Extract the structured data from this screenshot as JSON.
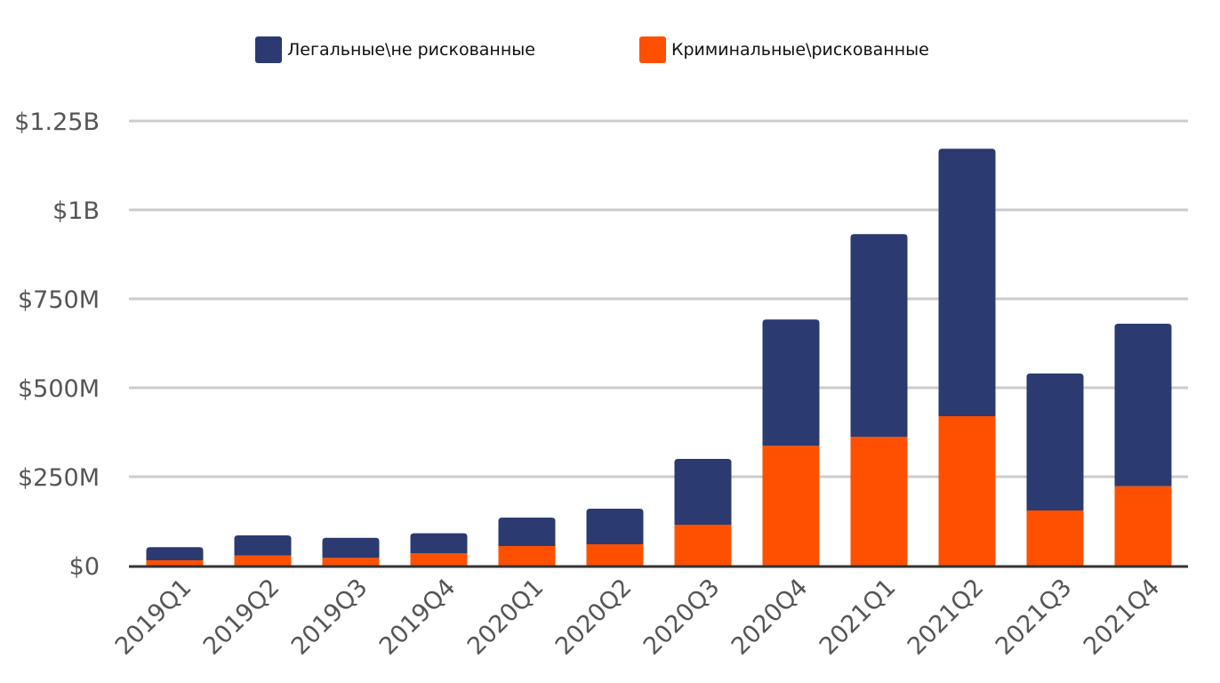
{
  "chart_data": {
    "type": "bar",
    "stacked": true,
    "categories": [
      "2019Q1",
      "2019Q2",
      "2019Q3",
      "2019Q4",
      "2020Q1",
      "2020Q2",
      "2020Q3",
      "2020Q4",
      "2021Q1",
      "2021Q2",
      "2021Q3",
      "2021Q4"
    ],
    "series": [
      {
        "name": "Криминальные\\рискованные",
        "color": "#fe5000",
        "values": [
          15,
          28,
          22,
          35,
          55,
          60,
          115,
          337,
          362,
          420,
          155,
          223
        ]
      },
      {
        "name": "Легальные\\не рискованные",
        "color": "#2b3a70",
        "values": [
          37,
          57,
          56,
          56,
          80,
          100,
          185,
          355,
          570,
          752,
          385,
          457
        ]
      }
    ],
    "legend_order": [
      1,
      0
    ],
    "ylim": [
      0,
      1250
    ],
    "yticks": [
      {
        "value": 0,
        "label": "$0"
      },
      {
        "value": 250,
        "label": "$250M"
      },
      {
        "value": 500,
        "label": "$500M"
      },
      {
        "value": 750,
        "label": "$750M"
      },
      {
        "value": 1000,
        "label": "$1B"
      },
      {
        "value": 1250,
        "label": "$1.25B"
      }
    ],
    "title": "",
    "xlabel": "",
    "ylabel": "",
    "grid": true,
    "legend_position": "top"
  }
}
